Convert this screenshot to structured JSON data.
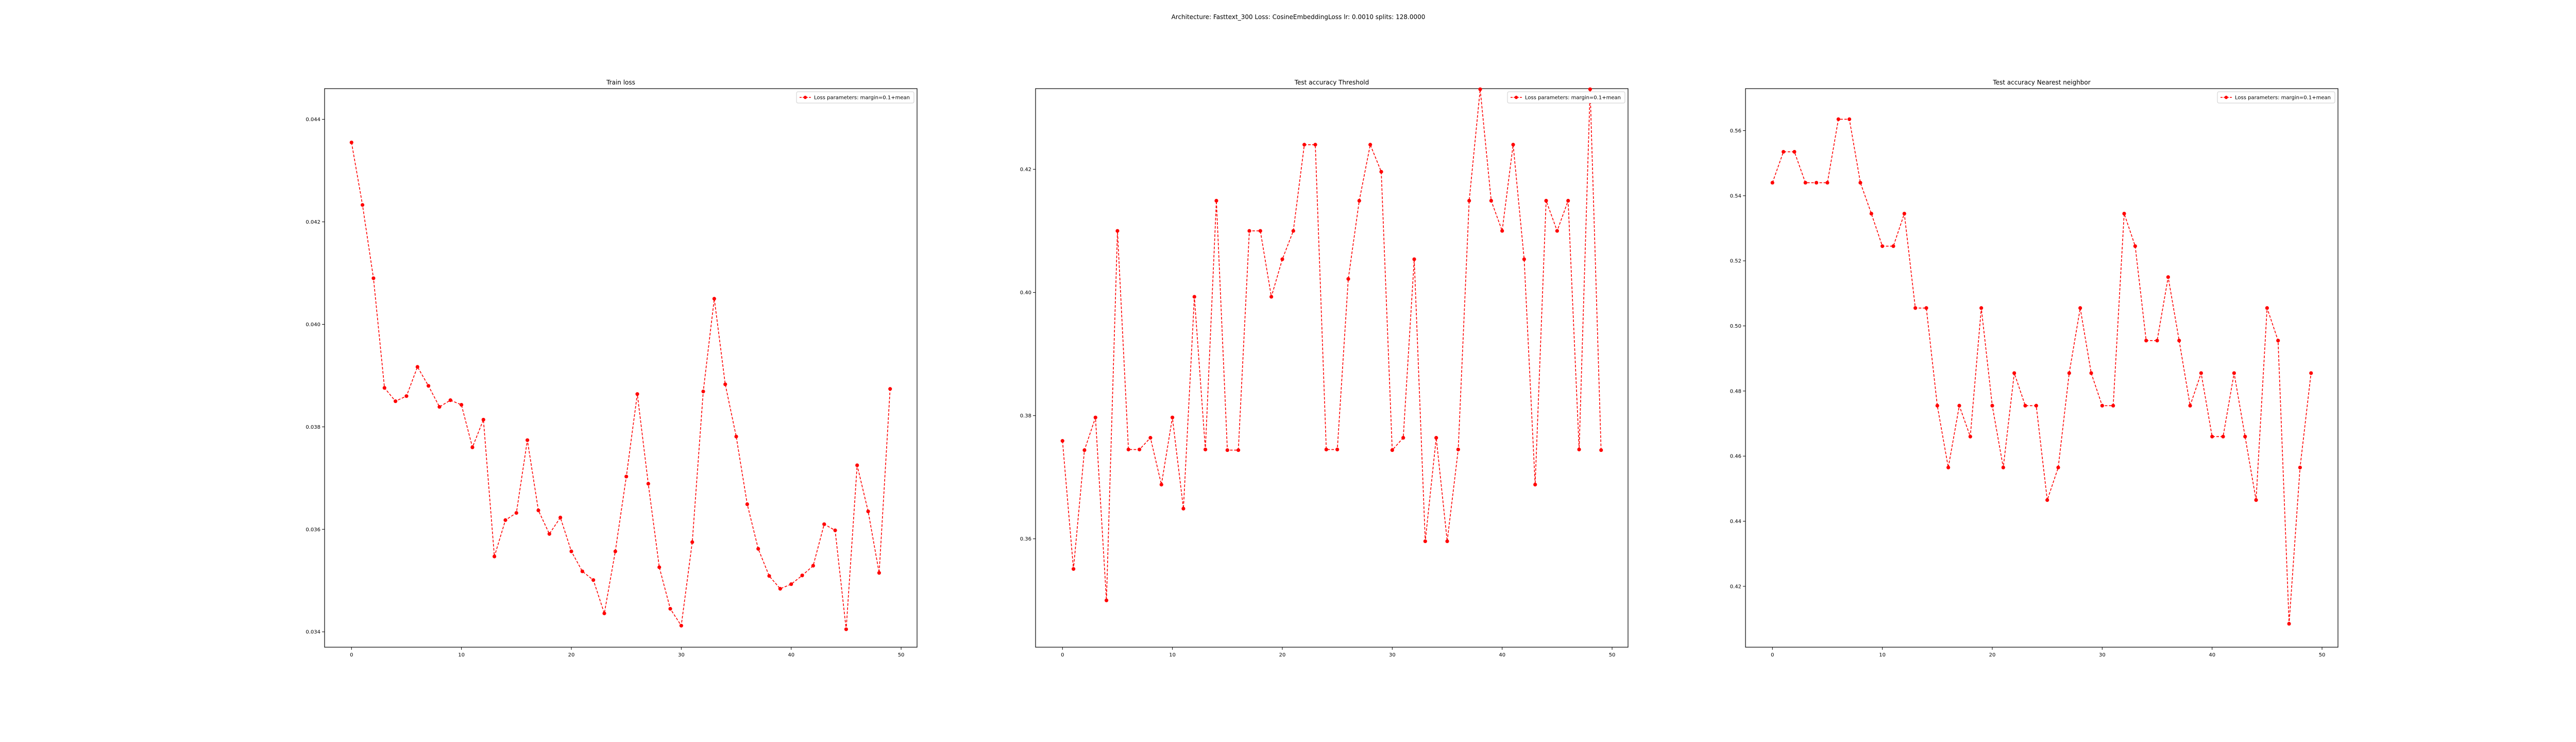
{
  "figure_title": "Architecture: Fasttext_300 Loss: CosineEmbeddingLoss lr: 0.0010 splits: 128.0000",
  "colors": {
    "series": "#ff0000",
    "axes": "#000000",
    "legend_border": "#cccccc"
  },
  "chart_data": [
    {
      "type": "line",
      "title": "Train loss",
      "xlabel": "",
      "ylabel": "",
      "xlim": [
        -2.45,
        51.45
      ],
      "ylim": [
        0.0337,
        0.0446
      ],
      "xticks": [
        0,
        10,
        20,
        30,
        40,
        50
      ],
      "xtick_labels": [
        "0",
        "10",
        "20",
        "30",
        "40",
        "50"
      ],
      "yticks": [
        0.034,
        0.036,
        0.038,
        0.04,
        0.042,
        0.044
      ],
      "ytick_labels": [
        "0.034",
        "0.036",
        "0.038",
        "0.040",
        "0.042",
        "0.044"
      ],
      "grid": false,
      "legend_position": "top-right",
      "series": [
        {
          "name": "Loss parameters: margin=0.1+mean",
          "marker": "dot",
          "line_style": "dashed",
          "x": [
            0,
            1,
            2,
            3,
            4,
            5,
            6,
            7,
            8,
            9,
            10,
            11,
            12,
            13,
            14,
            15,
            16,
            17,
            18,
            19,
            20,
            21,
            22,
            23,
            24,
            25,
            26,
            27,
            28,
            29,
            30,
            31,
            32,
            33,
            34,
            35,
            36,
            37,
            38,
            39,
            40,
            41,
            42,
            43,
            44,
            45,
            46,
            47,
            48,
            49
          ],
          "y": [
            0.04355,
            0.04233,
            0.0409,
            0.03876,
            0.0385,
            0.0386,
            0.03917,
            0.0388,
            0.03839,
            0.03852,
            0.03843,
            0.0376,
            0.03814,
            0.03547,
            0.03618,
            0.03632,
            0.03774,
            0.03637,
            0.03591,
            0.03623,
            0.03557,
            0.03518,
            0.03501,
            0.03436,
            0.03557,
            0.03703,
            0.03864,
            0.03689,
            0.03526,
            0.03445,
            0.03412,
            0.03575,
            0.03869,
            0.0405,
            0.03883,
            0.03781,
            0.03649,
            0.03562,
            0.03509,
            0.03484,
            0.03493,
            0.0351,
            0.03529,
            0.0361,
            0.03598,
            0.03405,
            0.03725,
            0.03635,
            0.03515,
            0.03874
          ]
        }
      ]
    },
    {
      "type": "line",
      "title": "Test accuracy Threshold",
      "xlabel": "",
      "ylabel": "",
      "xlim": [
        -2.45,
        51.45
      ],
      "ylim": [
        0.3424,
        0.4331
      ],
      "xticks": [
        0,
        10,
        20,
        30,
        40,
        50
      ],
      "xtick_labels": [
        "0",
        "10",
        "20",
        "30",
        "40",
        "50"
      ],
      "yticks": [
        0.36,
        0.38,
        0.4,
        0.42
      ],
      "ytick_labels": [
        "0.36",
        "0.38",
        "0.40",
        "0.42"
      ],
      "grid": false,
      "legend_position": "top-right",
      "series": [
        {
          "name": "Loss parameters: margin=0.1+mean",
          "marker": "dot",
          "line_style": "dashed",
          "x": [
            0,
            1,
            2,
            3,
            4,
            5,
            6,
            7,
            8,
            9,
            10,
            11,
            12,
            13,
            14,
            15,
            16,
            17,
            18,
            19,
            20,
            21,
            22,
            23,
            24,
            25,
            26,
            27,
            28,
            29,
            30,
            31,
            32,
            33,
            34,
            35,
            36,
            37,
            38,
            39,
            40,
            41,
            42,
            43,
            44,
            45,
            46,
            47,
            48,
            49
          ],
          "y": [
            0.3759,
            0.3551,
            0.3744,
            0.3797,
            0.35,
            0.41,
            0.3745,
            0.3745,
            0.3764,
            0.3688,
            0.3797,
            0.3649,
            0.3993,
            0.3745,
            0.4149,
            0.3744,
            0.3744,
            0.41,
            0.41,
            0.3993,
            0.4054,
            0.41,
            0.424,
            0.424,
            0.3745,
            0.3745,
            0.4022,
            0.4149,
            0.424,
            0.4196,
            0.3744,
            0.3764,
            0.4054,
            0.3596,
            0.3764,
            0.3596,
            0.3745,
            0.4149,
            0.433,
            0.4149,
            0.41,
            0.424,
            0.4054,
            0.3688,
            0.4149,
            0.41,
            0.4149,
            0.3745,
            0.433,
            0.3744
          ]
        }
      ]
    },
    {
      "type": "line",
      "title": "Test accuracy Nearest neighbor",
      "xlabel": "",
      "ylabel": "",
      "xlim": [
        -2.45,
        51.45
      ],
      "ylim": [
        0.4013,
        0.5729
      ],
      "xticks": [
        0,
        10,
        20,
        30,
        40,
        50
      ],
      "xtick_labels": [
        "0",
        "10",
        "20",
        "30",
        "40",
        "50"
      ],
      "yticks": [
        0.42,
        0.44,
        0.46,
        0.48,
        0.5,
        0.52,
        0.54,
        0.56
      ],
      "ytick_labels": [
        "0.42",
        "0.44",
        "0.46",
        "0.48",
        "0.50",
        "0.52",
        "0.54",
        "0.56"
      ],
      "grid": false,
      "legend_position": "top-right",
      "series": [
        {
          "name": "Loss parameters: margin=0.1+mean",
          "marker": "dot",
          "line_style": "dashed",
          "x": [
            0,
            1,
            2,
            3,
            4,
            5,
            6,
            7,
            8,
            9,
            10,
            11,
            12,
            13,
            14,
            15,
            16,
            17,
            18,
            19,
            20,
            21,
            22,
            23,
            24,
            25,
            26,
            27,
            28,
            29,
            30,
            31,
            32,
            33,
            34,
            35,
            36,
            37,
            38,
            39,
            40,
            41,
            42,
            43,
            44,
            45,
            46,
            47,
            48,
            49
          ],
          "y": [
            0.544,
            0.5535,
            0.5535,
            0.544,
            0.544,
            0.544,
            0.5635,
            0.5635,
            0.544,
            0.5345,
            0.5245,
            0.5245,
            0.5345,
            0.5055,
            0.5055,
            0.4755,
            0.4565,
            0.4755,
            0.466,
            0.5055,
            0.4755,
            0.4565,
            0.4855,
            0.4755,
            0.4755,
            0.4465,
            0.4565,
            0.4855,
            0.5055,
            0.4855,
            0.4755,
            0.4755,
            0.5345,
            0.5245,
            0.4955,
            0.4955,
            0.515,
            0.4955,
            0.4755,
            0.4855,
            0.466,
            0.466,
            0.4855,
            0.466,
            0.4465,
            0.5055,
            0.4955,
            0.4085,
            0.4565,
            0.4855
          ]
        }
      ]
    }
  ]
}
